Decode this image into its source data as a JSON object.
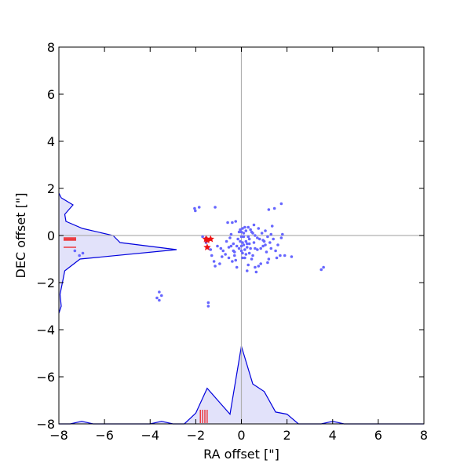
{
  "chart_data": {
    "type": "scatter",
    "title": "",
    "xlabel": "RA offset [\"]",
    "ylabel": "DEC offset [\"]",
    "xlim": [
      -8,
      8
    ],
    "ylim": [
      -8,
      8
    ],
    "x_ticks": [
      "−8",
      "−6",
      "−4",
      "−2",
      "0",
      "2",
      "4",
      "6",
      "8"
    ],
    "y_ticks": [
      "−8",
      "−6",
      "−4",
      "−2",
      "0",
      "2",
      "4",
      "6",
      "8"
    ],
    "x_tick_values": [
      -8,
      -6,
      -4,
      -2,
      0,
      2,
      4,
      6,
      8
    ],
    "y_tick_values": [
      -8,
      -6,
      -4,
      -2,
      0,
      2,
      4,
      6,
      8
    ],
    "grid": false,
    "crosshair": {
      "x": 0,
      "y": 0,
      "color": "#b0b0b0"
    },
    "colors": {
      "points": "#6666ff",
      "markers": "#ee1111",
      "histogram_line": "#0000dd",
      "histogram_fill": "#e2e2fa"
    },
    "series": [
      {
        "kind": "points",
        "points": [
          [
            -2.05,
            1.15
          ],
          [
            -2.02,
            1.05
          ],
          [
            -1.85,
            1.2
          ],
          [
            -1.15,
            1.2
          ],
          [
            -0.6,
            0.55
          ],
          [
            -0.4,
            0.55
          ],
          [
            -0.25,
            0.6
          ],
          [
            1.2,
            1.1
          ],
          [
            1.45,
            1.15
          ],
          [
            1.75,
            1.35
          ],
          [
            1.35,
            0.4
          ],
          [
            1.8,
            0.05
          ],
          [
            1.75,
            -0.1
          ],
          [
            -1.7,
            -0.05
          ],
          [
            -1.55,
            -0.1
          ],
          [
            -1.55,
            -0.3
          ],
          [
            -1.45,
            -0.5
          ],
          [
            -1.35,
            -0.6
          ],
          [
            -1.3,
            -0.85
          ],
          [
            -1.2,
            -1.1
          ],
          [
            -1.15,
            -1.3
          ],
          [
            -0.95,
            -1.2
          ],
          [
            -0.85,
            -0.9
          ],
          [
            -0.8,
            -0.65
          ],
          [
            -0.7,
            -0.8
          ],
          [
            -0.55,
            -0.5
          ],
          [
            -0.5,
            -0.1
          ],
          [
            -0.45,
            0.05
          ],
          [
            -0.35,
            -0.35
          ],
          [
            -0.3,
            -0.7
          ],
          [
            -0.25,
            -1.05
          ],
          [
            -0.2,
            -1.35
          ],
          [
            -0.1,
            -0.55
          ],
          [
            -0.05,
            -0.25
          ],
          [
            0.0,
            0.15
          ],
          [
            0.0,
            -0.45
          ],
          [
            0.05,
            -0.75
          ],
          [
            0.05,
            0.3
          ],
          [
            0.1,
            -0.05
          ],
          [
            0.15,
            -0.6
          ],
          [
            0.15,
            -0.95
          ],
          [
            0.2,
            0.2
          ],
          [
            0.25,
            -0.35
          ],
          [
            0.3,
            -1.25
          ],
          [
            0.3,
            0.35
          ],
          [
            0.35,
            -0.15
          ],
          [
            0.4,
            -0.55
          ],
          [
            0.45,
            0.15
          ],
          [
            0.5,
            -0.85
          ],
          [
            0.55,
            0.45
          ],
          [
            0.55,
            -0.3
          ],
          [
            0.6,
            0.0
          ],
          [
            0.65,
            -1.55
          ],
          [
            0.7,
            -0.6
          ],
          [
            0.75,
            0.3
          ],
          [
            0.8,
            -0.15
          ],
          [
            0.85,
            -1.2
          ],
          [
            0.9,
            0.1
          ],
          [
            0.95,
            -0.45
          ],
          [
            1.0,
            -0.25
          ],
          [
            1.05,
            0.2
          ],
          [
            1.1,
            -0.7
          ],
          [
            1.15,
            -0.05
          ],
          [
            1.2,
            -1.0
          ],
          [
            1.25,
            -0.3
          ],
          [
            1.3,
            0.05
          ],
          [
            1.4,
            -0.15
          ],
          [
            1.5,
            -0.65
          ],
          [
            1.55,
            -0.95
          ],
          [
            1.6,
            -0.4
          ],
          [
            1.7,
            -0.85
          ],
          [
            1.9,
            -0.85
          ],
          [
            2.2,
            -0.9
          ],
          [
            -0.05,
            0.25
          ],
          [
            0.1,
            0.1
          ],
          [
            -0.15,
            -0.15
          ],
          [
            0.2,
            -0.25
          ],
          [
            -0.2,
            -0.45
          ],
          [
            0.25,
            -0.5
          ],
          [
            0.0,
            -0.65
          ],
          [
            0.35,
            -0.75
          ],
          [
            -0.3,
            -0.85
          ],
          [
            0.45,
            -1.0
          ],
          [
            -0.4,
            -1.1
          ],
          [
            0.6,
            -1.35
          ],
          [
            0.25,
            -1.5
          ],
          [
            0.0,
            -0.05
          ],
          [
            0.05,
            -0.3
          ],
          [
            0.3,
            -0.05
          ],
          [
            0.1,
            -0.4
          ],
          [
            0.15,
            0.35
          ],
          [
            -0.1,
            0.15
          ],
          [
            0.4,
            0.25
          ],
          [
            0.5,
            0.1
          ],
          [
            0.6,
            -0.55
          ],
          [
            0.7,
            -0.1
          ],
          [
            0.85,
            -0.55
          ],
          [
            0.95,
            -0.2
          ],
          [
            1.05,
            -0.4
          ],
          [
            1.15,
            -1.15
          ],
          [
            1.3,
            -0.55
          ],
          [
            -0.9,
            -0.55
          ],
          [
            -0.65,
            -0.25
          ],
          [
            -1.05,
            -0.45
          ],
          [
            -0.35,
            -0.65
          ],
          [
            -0.55,
            -0.95
          ],
          [
            0.75,
            -1.3
          ],
          [
            0.05,
            -0.95
          ],
          [
            0.2,
            -0.8
          ],
          [
            0.35,
            -0.35
          ],
          [
            -0.45,
            -0.45
          ],
          [
            -7.3,
            -0.65
          ],
          [
            -7.1,
            -0.85
          ],
          [
            -6.95,
            -0.75
          ],
          [
            -3.6,
            -2.4
          ],
          [
            -3.5,
            -2.55
          ],
          [
            -3.7,
            -2.65
          ],
          [
            -3.6,
            -2.75
          ],
          [
            -1.45,
            -2.85
          ],
          [
            -1.45,
            -3.0
          ],
          [
            3.5,
            -1.45
          ],
          [
            3.6,
            -1.35
          ]
        ]
      },
      {
        "kind": "star",
        "points": [
          [
            -1.55,
            -0.15
          ],
          [
            -1.5,
            -0.5
          ],
          [
            -1.5,
            -0.2
          ],
          [
            -1.35,
            -0.15
          ]
        ]
      }
    ],
    "histograms": {
      "x": {
        "bins": [
          -8,
          -7.5,
          -7,
          -6.5,
          -6,
          -5.5,
          -5,
          -4.5,
          -4,
          -3.5,
          -3,
          -2.5,
          -2,
          -1.5,
          -1,
          -0.5,
          0,
          0.5,
          1,
          1.5,
          2,
          2.5,
          3,
          3.5,
          4,
          4.5,
          5,
          5.5,
          6,
          6.5,
          7,
          7.5,
          8
        ],
        "values": [
          0,
          0,
          0.12,
          0,
          0,
          0,
          0,
          0,
          0,
          0.12,
          0,
          0,
          0.5,
          1.65,
          1.05,
          0.45,
          3.6,
          1.85,
          1.5,
          0.55,
          0.45,
          0,
          0,
          0,
          0.12,
          0,
          0,
          0,
          0,
          0,
          0,
          0,
          0
        ],
        "value_max": 4,
        "ticks": [
          -1.8,
          -1.7,
          -1.6,
          -1.5
        ]
      },
      "y": {
        "bins": [
          -3.3,
          -3.0,
          -2.5,
          -2.0,
          -1.5,
          -1.0,
          -0.6,
          -0.3,
          0.0,
          0.3,
          0.6,
          0.9,
          1.3,
          1.6,
          1.8
        ],
        "values": [
          0,
          0.1,
          0.05,
          0.15,
          0.25,
          0.9,
          5.0,
          2.6,
          2.3,
          1.0,
          0.3,
          0.25,
          0.6,
          0.1,
          0
        ],
        "value_max": 5,
        "ticks": [
          -0.2,
          -0.15,
          -0.1,
          -0.5
        ]
      }
    }
  }
}
